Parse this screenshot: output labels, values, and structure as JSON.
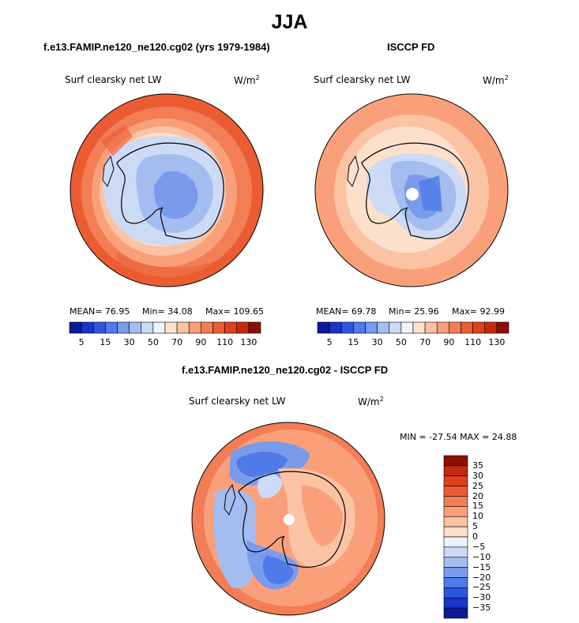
{
  "title": "JJA",
  "panels": [
    {
      "id": "model",
      "title": "f.e13.FAMIP.ne120_ne120.cg02 (yrs 1979-1984)",
      "variable": "Surf clearsky net LW",
      "units": "W/m",
      "units_exp": "2",
      "stats": {
        "mean": "MEAN=  76.95",
        "min": "Min=  34.08",
        "max": "Max= 109.65"
      }
    },
    {
      "id": "obs",
      "title": "ISCCP FD",
      "variable": "Surf clearsky net LW",
      "units": "W/m",
      "units_exp": "2",
      "stats": {
        "mean": "MEAN=  69.78",
        "min": "Min=  25.96",
        "max": "Max=  92.99"
      }
    },
    {
      "id": "diff",
      "title": "f.e13.FAMIP.ne120_ne120.cg02 - ISCCP FD",
      "variable": "Surf clearsky net LW",
      "units": "W/m",
      "units_exp": "2",
      "minmax": "MIN = -27.54 MAX =  24.88"
    }
  ],
  "colorbar_abs": {
    "colors": [
      "#0a1a9a",
      "#1a33c8",
      "#2e55dd",
      "#4f7ae8",
      "#7a9bec",
      "#a4bdf0",
      "#ccdaf5",
      "#eef2fa",
      "#fde0cc",
      "#fbc3a3",
      "#f9a07b",
      "#f37d55",
      "#ec5c32",
      "#e0401c",
      "#c42a10",
      "#8e1005"
    ],
    "labels": [
      "5",
      "15",
      "30",
      "50",
      "70",
      "90",
      "110",
      "130"
    ]
  },
  "colorbar_diff": {
    "colors": [
      "#8e1005",
      "#c42a10",
      "#e0401c",
      "#ec5c32",
      "#f37d55",
      "#f9a07b",
      "#fbc3a3",
      "#fde0cc",
      "#eef2fa",
      "#ccdaf5",
      "#a4bdf0",
      "#7a9bec",
      "#4f7ae8",
      "#2e55dd",
      "#1a33c8",
      "#0a1a9a"
    ],
    "labels": [
      "35",
      "30",
      "25",
      "20",
      "15",
      "10",
      "5",
      "0",
      "−5",
      "−10",
      "−15",
      "−20",
      "−25",
      "−30",
      "−35"
    ]
  }
}
